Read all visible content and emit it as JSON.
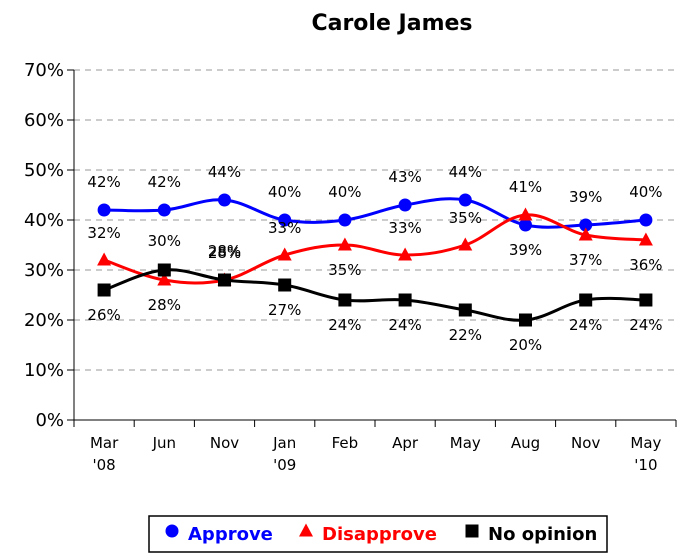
{
  "chart_data": {
    "type": "line",
    "title": "Carole James",
    "xlabel": "",
    "ylabel": "",
    "categories": [
      "Mar\n'08",
      "Jun",
      "Nov",
      "Jan\n'09",
      "Feb",
      "Apr",
      "May",
      "Aug",
      "Nov",
      "May\n'10"
    ],
    "ylim": [
      0,
      70
    ],
    "yticks": [
      "0%",
      "10%",
      "20%",
      "30%",
      "40%",
      "50%",
      "60%",
      "70%"
    ],
    "grid": true,
    "legend_position": "bottom",
    "series": [
      {
        "name": "Approve",
        "color": "#0000ff",
        "marker": "circle",
        "values": [
          42,
          42,
          44,
          40,
          40,
          43,
          44,
          39,
          39,
          40
        ],
        "labels": [
          "42%",
          "42%",
          "44%",
          "40%",
          "40%",
          "43%",
          "44%",
          "39%",
          "39%",
          "40%"
        ]
      },
      {
        "name": "Disapprove",
        "color": "#ff0000",
        "marker": "triangle",
        "values": [
          32,
          28,
          28,
          33,
          35,
          33,
          35,
          41,
          37,
          36
        ],
        "labels": [
          "32%",
          "28%",
          "28%",
          "33%",
          "35%",
          "33%",
          "35%",
          "41%",
          "37%",
          "36%"
        ]
      },
      {
        "name": "No opinion",
        "color": "#000000",
        "marker": "square",
        "values": [
          26,
          30,
          28,
          27,
          24,
          24,
          22,
          20,
          24,
          24
        ],
        "labels": [
          "26%",
          "30%",
          "28%",
          "27%",
          "24%",
          "24%",
          "22%",
          "20%",
          "24%",
          "24%"
        ]
      }
    ]
  }
}
